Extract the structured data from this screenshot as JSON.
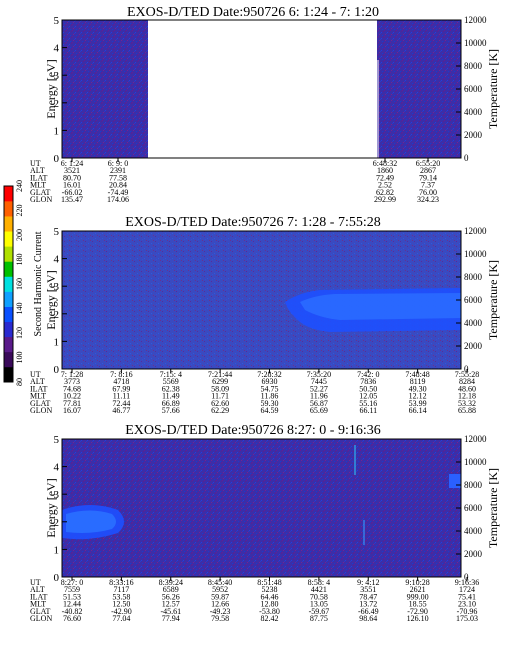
{
  "colorbar": {
    "label": "Second Harmonic Current",
    "ticks": [
      "240",
      "220",
      "200",
      "180",
      "160",
      "140",
      "120",
      "100",
      "80"
    ],
    "colors": [
      "#000000",
      "#3a0a5a",
      "#5a1a8a",
      "#2a2ad0",
      "#0a50ff",
      "#10a0ff",
      "#00e0e0",
      "#00c000",
      "#b0e000",
      "#ffff00",
      "#ffb000",
      "#ff6000",
      "#ff0000"
    ]
  },
  "chart_data": [
    {
      "type": "heatmap",
      "title": "EXOS-D/TED   Date:950726  6: 1:24 - 7: 1:20",
      "ylabel": "Energy [eV]",
      "y2label": "Temperature [K]",
      "ylim": [
        0,
        5
      ],
      "y2lim": [
        0,
        12000
      ],
      "yticks": [
        "0",
        "1",
        "2",
        "3",
        "4",
        "5"
      ],
      "y2ticks": [
        "0",
        "2000",
        "4000",
        "6000",
        "8000",
        "10000",
        "12000"
      ],
      "data_gap": true,
      "orbit_labels": [
        "UT",
        "ALT",
        "ILAT",
        "MLT",
        "GLAT",
        "GLON"
      ],
      "orbit_columns": [
        {
          "ut": "6: 1:24",
          "alt": "3521",
          "ilat": "80.70",
          "mlt": "16.01",
          "glat": "-66.02",
          "glon": "135.47"
        },
        {
          "ut": "6: 9: 0",
          "alt": "2391",
          "ilat": "77.58",
          "mlt": "20.84",
          "glat": "-74.49",
          "glon": "174.06"
        },
        {
          "ut": "6:48:32",
          "alt": "1860",
          "ilat": "72.49",
          "mlt": "2.52",
          "glat": "62.82",
          "glon": "292.99"
        },
        {
          "ut": "6:55:20",
          "alt": "2867",
          "ilat": "79.14",
          "mlt": "7.37",
          "glat": "76.00",
          "glon": "324.23"
        }
      ]
    },
    {
      "type": "heatmap",
      "title": "EXOS-D/TED   Date:950726  7: 1:28 - 7:55:28",
      "ylabel": "Energy [eV]",
      "y2label": "Temperature [K]",
      "ylim": [
        0,
        5
      ],
      "y2lim": [
        0,
        12000
      ],
      "yticks": [
        "0",
        "1",
        "2",
        "3",
        "4",
        "5"
      ],
      "y2ticks": [
        "0",
        "2000",
        "4000",
        "6000",
        "8000",
        "10000",
        "12000"
      ],
      "orbit_labels": [
        "UT",
        "ALT",
        "ILAT",
        "MLT",
        "GLAT",
        "GLON"
      ],
      "orbit_columns": [
        {
          "ut": "7: 1:28",
          "alt": "3773",
          "ilat": "74.68",
          "mlt": "10.22",
          "glat": "77.81",
          "glon": "16.07"
        },
        {
          "ut": "7: 8:16",
          "alt": "4718",
          "ilat": "67.99",
          "mlt": "11.11",
          "glat": "72.44",
          "glon": "46.77"
        },
        {
          "ut": "7:15: 4",
          "alt": "5569",
          "ilat": "62.38",
          "mlt": "11.49",
          "glat": "66.89",
          "glon": "57.66"
        },
        {
          "ut": "7:21:44",
          "alt": "6299",
          "ilat": "58.09",
          "mlt": "11.71",
          "glat": "62.60",
          "glon": "62.29"
        },
        {
          "ut": "7:28:32",
          "alt": "6930",
          "ilat": "54.75",
          "mlt": "11.86",
          "glat": "59.30",
          "glon": "64.59"
        },
        {
          "ut": "7:35:20",
          "alt": "7445",
          "ilat": "52.27",
          "mlt": "11.96",
          "glat": "56.87",
          "glon": "65.69"
        },
        {
          "ut": "7:42: 0",
          "alt": "7836",
          "ilat": "50.50",
          "mlt": "12.05",
          "glat": "55.16",
          "glon": "66.11"
        },
        {
          "ut": "7:48:48",
          "alt": "8119",
          "ilat": "49.30",
          "mlt": "12.12",
          "glat": "53.99",
          "glon": "66.14"
        },
        {
          "ut": "7:55:28",
          "alt": "8284",
          "ilat": "48.60",
          "mlt": "12.18",
          "glat": "53.32",
          "glon": "65.88"
        }
      ]
    },
    {
      "type": "heatmap",
      "title": "EXOS-D/TED   Date:950726  8:27: 0 - 9:16:36",
      "ylabel": "Energy [eV]",
      "y2label": "Temperature [K]",
      "ylim": [
        0,
        5
      ],
      "y2lim": [
        0,
        12000
      ],
      "yticks": [
        "0",
        "1",
        "2",
        "3",
        "4",
        "5"
      ],
      "y2ticks": [
        "0",
        "2000",
        "4000",
        "6000",
        "8000",
        "10000",
        "12000"
      ],
      "orbit_labels": [
        "UT",
        "ALT",
        "ILAT",
        "MLT",
        "GLAT",
        "GLON"
      ],
      "orbit_columns": [
        {
          "ut": "8:27: 0",
          "alt": "7559",
          "ilat": "51.53",
          "mlt": "12.44",
          "glat": "-40.82",
          "glon": "76.60"
        },
        {
          "ut": "8:33:16",
          "alt": "7117",
          "ilat": "53.58",
          "mlt": "12.50",
          "glat": "-42.90",
          "glon": "77.04"
        },
        {
          "ut": "8:39:24",
          "alt": "6589",
          "ilat": "56.26",
          "mlt": "12.57",
          "glat": "-45.61",
          "glon": "77.94"
        },
        {
          "ut": "8:45:40",
          "alt": "5952",
          "ilat": "59.87",
          "mlt": "12.66",
          "glat": "-49.23",
          "glon": "79.58"
        },
        {
          "ut": "8:51:48",
          "alt": "5238",
          "ilat": "64.46",
          "mlt": "12.80",
          "glat": "-53.80",
          "glon": "82.42"
        },
        {
          "ut": "8:58: 4",
          "alt": "4421",
          "ilat": "70.58",
          "mlt": "13.05",
          "glat": "-59.67",
          "glon": "87.75"
        },
        {
          "ut": "9: 4:12",
          "alt": "3551",
          "ilat": "78.47",
          "mlt": "13.72",
          "glat": "-66.49",
          "glon": "98.64"
        },
        {
          "ut": "9:10:28",
          "alt": "2621",
          "ilat": "999.00",
          "mlt": "18.55",
          "glat": "-72.90",
          "glon": "126.10"
        },
        {
          "ut": "9:16:36",
          "alt": "1724",
          "ilat": "75.41",
          "mlt": "23.10",
          "glat": "-70.96",
          "glon": "175.03"
        }
      ]
    }
  ]
}
